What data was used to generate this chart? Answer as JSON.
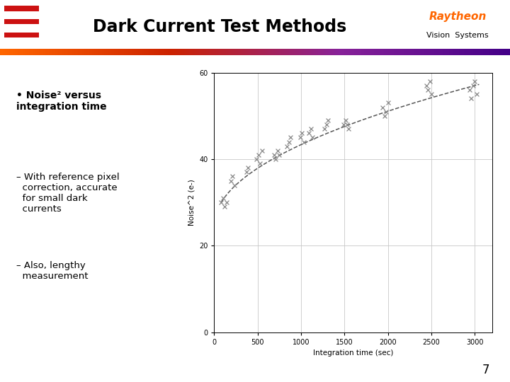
{
  "title": "Dark Current Test Methods",
  "xlabel": "Integration time (sec)",
  "ylabel": "Noise^2 (e-)",
  "xlim": [
    0,
    3200
  ],
  "ylim": [
    0,
    60
  ],
  "xticks": [
    0,
    500,
    1000,
    1500,
    2000,
    2500,
    3000
  ],
  "yticks": [
    0,
    20,
    40,
    60
  ],
  "bg_color": "#ffffff",
  "scatter_color": "#888888",
  "fit_color": "#555555",
  "data_x": [
    80,
    100,
    120,
    140,
    190,
    210,
    230,
    370,
    390,
    490,
    510,
    530,
    550,
    690,
    710,
    730,
    750,
    840,
    860,
    880,
    990,
    1010,
    1030,
    1090,
    1110,
    1130,
    1270,
    1290,
    1310,
    1490,
    1510,
    1530,
    1550,
    1940,
    1960,
    1980,
    2000,
    2440,
    2460,
    2480,
    2500,
    2940,
    2960,
    2980,
    3000,
    3020
  ],
  "data_y": [
    30,
    31,
    29,
    30,
    35,
    36,
    34,
    37,
    38,
    40,
    41,
    39,
    42,
    41,
    40,
    42,
    41,
    43,
    44,
    45,
    45,
    46,
    44,
    46,
    47,
    45,
    47,
    48,
    49,
    48,
    49,
    48,
    47,
    52,
    50,
    51,
    53,
    57,
    56,
    58,
    55,
    56,
    54,
    57,
    58,
    55
  ],
  "bullet1": "Noise² versus\nintegration time",
  "bullet2": "– With reference pixel\n  correction, accurate\n  for small dark\n  currents",
  "bullet3": "– Also, lengthy\n  measurement",
  "page_num": "7",
  "header_color": "#000000",
  "raytheon_color": "#ff6600",
  "gradient_left": "#ff8844",
  "gradient_right": "#660099"
}
